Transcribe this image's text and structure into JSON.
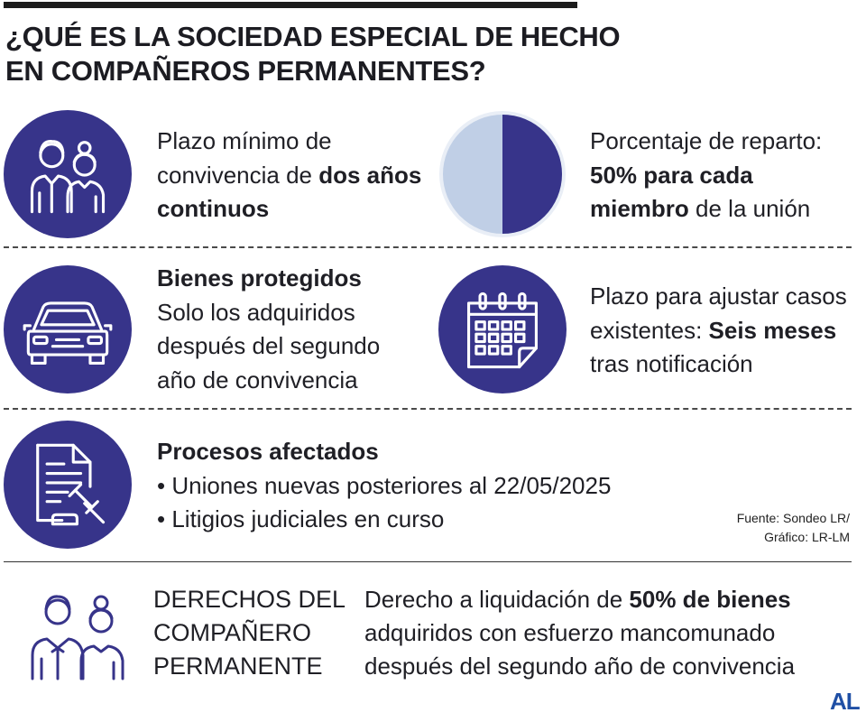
{
  "title": [
    "¿QUÉ ES LA SOCIEDAD ESPECIAL DE HECHO",
    "EN COMPAÑEROS PERMANENTES?"
  ],
  "items": {
    "convivencia": {
      "pre": "Plazo mínimo de convivencia de ",
      "bold": "dos años continuos"
    },
    "reparto": {
      "pre": "Porcentaje de reparto: ",
      "bold": "50% para cada miembro",
      "post": " de la unión",
      "share_percent": 50
    },
    "bienes": {
      "heading": "Bienes protegidos",
      "text": "Solo los adquiridos después del segundo año de convivencia"
    },
    "plazo": {
      "pre": "Plazo para ajustar casos existentes: ",
      "bold": "Seis meses",
      "post": " tras notificación"
    },
    "procesos": {
      "heading": "Procesos afectados",
      "bullets": [
        "• Uniones nuevas posteriores al 22/05/2025",
        "•  Litigios judiciales en curso"
      ]
    }
  },
  "source": [
    "Fuente: Sondeo LR/",
    "Gráfico: LR-LM"
  ],
  "derechos": {
    "title": [
      "DERECHOS DEL",
      "COMPAÑERO",
      "PERMANENTE"
    ],
    "pre": "Derecho a liquidación de ",
    "bold": "50% de bienes",
    "post": " adquiridos con esfuerzo mancomunado después del segundo año de convivencia"
  },
  "logo": "AL",
  "colors": {
    "primary": "#37348a",
    "pie_light": "#c0cfe6",
    "logo": "#1f4fa5"
  },
  "icons": [
    "couple-icon",
    "pie-chart-icon",
    "car-icon",
    "calendar-icon",
    "document-gavel-icon",
    "couple-outline-icon"
  ]
}
